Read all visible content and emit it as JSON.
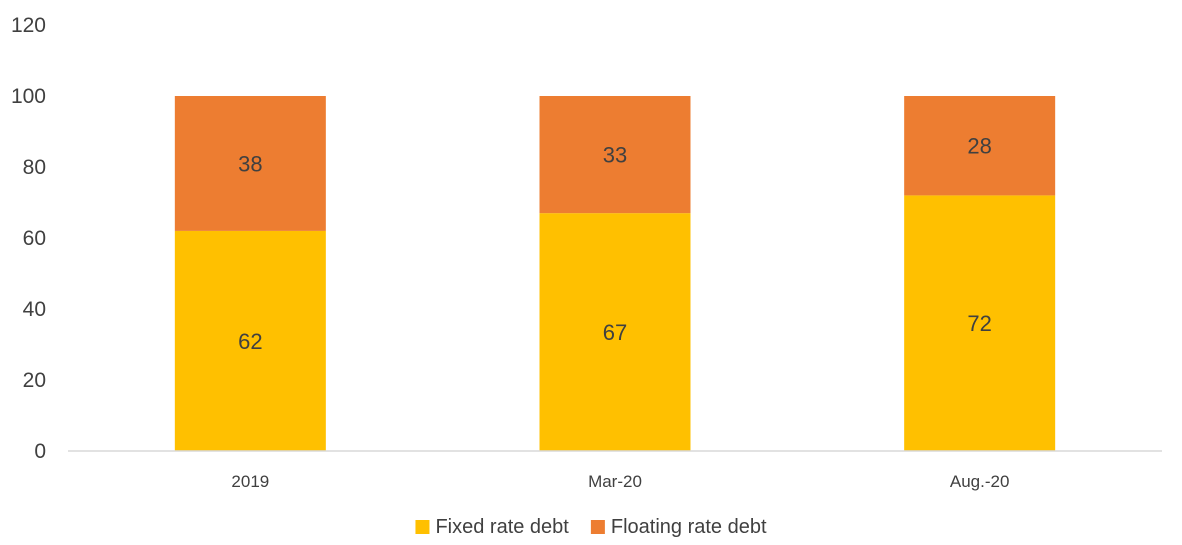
{
  "chart_data": {
    "type": "bar",
    "stacked": true,
    "categories": [
      "2019",
      "Mar-20",
      "Aug.-20"
    ],
    "series": [
      {
        "name": "Fixed rate debt",
        "values": [
          62,
          67,
          72
        ],
        "color": "#FFC000"
      },
      {
        "name": "Floating rate debt",
        "values": [
          38,
          33,
          28
        ],
        "color": "#ED7D31"
      }
    ],
    "ylim": [
      0,
      120
    ],
    "yticks": [
      "0",
      "20",
      "40",
      "60",
      "80",
      "100",
      "120"
    ],
    "grid": false,
    "legend_position": "bottom",
    "title": "",
    "xlabel": "",
    "ylabel": ""
  }
}
